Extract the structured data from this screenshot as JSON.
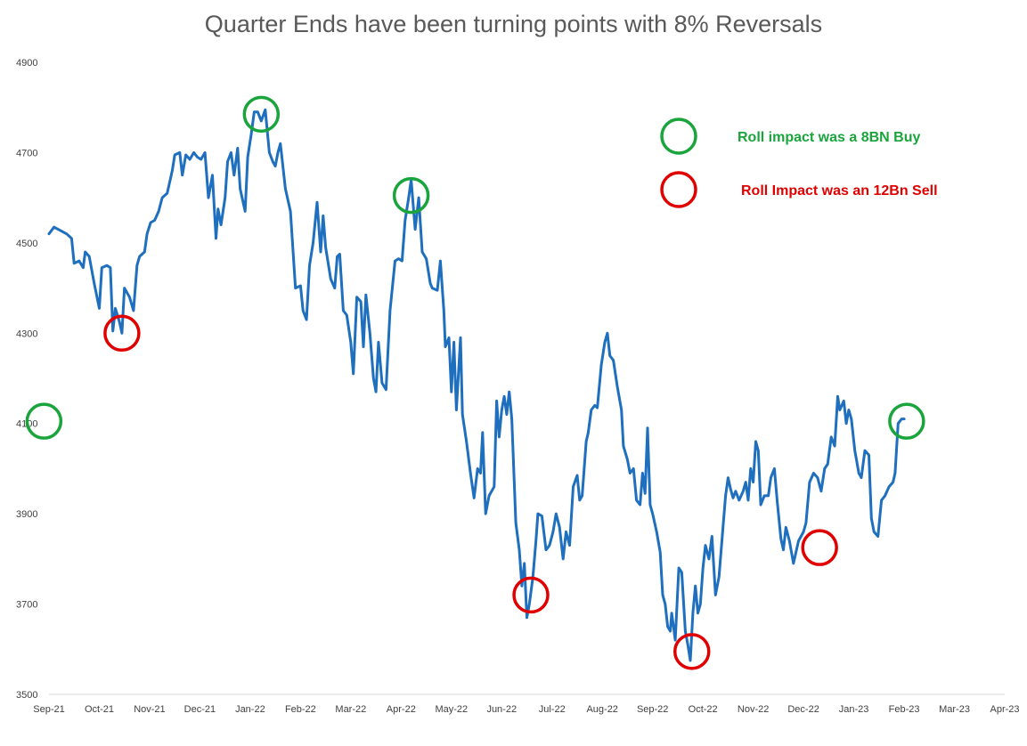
{
  "chart_data": {
    "type": "line",
    "title": "Quarter Ends have been turning points with 8% Reversals",
    "xlabel": "",
    "ylabel": "",
    "ylim": [
      3500,
      4900
    ],
    "yticks": [
      "3500",
      "3700",
      "3900",
      "4100",
      "4300",
      "4500",
      "4700",
      "4900"
    ],
    "xticks": [
      "Sep-21",
      "Oct-21",
      "Nov-21",
      "Dec-21",
      "Jan-22",
      "Feb-22",
      "Mar-22",
      "Apr-22",
      "May-22",
      "Jun-22",
      "Jul-22",
      "Aug-22",
      "Sep-22",
      "Oct-22",
      "Nov-22",
      "Dec-22",
      "Jan-23",
      "Feb-23",
      "Mar-23",
      "Apr-23"
    ],
    "grid": false,
    "legend_position": "top-right",
    "line_color": "#1f6fbf",
    "series": [
      {
        "points": [
          [
            0.0,
            4520
          ],
          [
            0.1,
            4535
          ],
          [
            0.35,
            4520
          ],
          [
            0.45,
            4510
          ],
          [
            0.5,
            4455
          ],
          [
            0.6,
            4460
          ],
          [
            0.68,
            4445
          ],
          [
            0.72,
            4480
          ],
          [
            0.8,
            4470
          ],
          [
            0.9,
            4410
          ],
          [
            1.0,
            4355
          ],
          [
            1.05,
            4445
          ],
          [
            1.15,
            4450
          ],
          [
            1.22,
            4445
          ],
          [
            1.27,
            4305
          ],
          [
            1.32,
            4355
          ],
          [
            1.4,
            4325
          ],
          [
            1.45,
            4300
          ],
          [
            1.5,
            4400
          ],
          [
            1.6,
            4380
          ],
          [
            1.68,
            4350
          ],
          [
            1.75,
            4450
          ],
          [
            1.8,
            4470
          ],
          [
            1.9,
            4480
          ],
          [
            1.95,
            4520
          ],
          [
            2.02,
            4545
          ],
          [
            2.1,
            4550
          ],
          [
            2.18,
            4570
          ],
          [
            2.25,
            4600
          ],
          [
            2.35,
            4610
          ],
          [
            2.45,
            4660
          ],
          [
            2.5,
            4695
          ],
          [
            2.6,
            4700
          ],
          [
            2.65,
            4650
          ],
          [
            2.72,
            4695
          ],
          [
            2.8,
            4685
          ],
          [
            2.88,
            4700
          ],
          [
            2.95,
            4690
          ],
          [
            3.02,
            4685
          ],
          [
            3.1,
            4700
          ],
          [
            3.17,
            4600
          ],
          [
            3.25,
            4650
          ],
          [
            3.32,
            4510
          ],
          [
            3.36,
            4575
          ],
          [
            3.42,
            4540
          ],
          [
            3.5,
            4600
          ],
          [
            3.55,
            4680
          ],
          [
            3.62,
            4700
          ],
          [
            3.68,
            4650
          ],
          [
            3.75,
            4710
          ],
          [
            3.8,
            4620
          ],
          [
            3.9,
            4570
          ],
          [
            3.95,
            4690
          ],
          [
            4.02,
            4740
          ],
          [
            4.08,
            4790
          ],
          [
            4.15,
            4790
          ],
          [
            4.22,
            4770
          ],
          [
            4.3,
            4795
          ],
          [
            4.38,
            4700
          ],
          [
            4.45,
            4680
          ],
          [
            4.5,
            4670
          ],
          [
            4.55,
            4700
          ],
          [
            4.6,
            4720
          ],
          [
            4.7,
            4620
          ],
          [
            4.8,
            4570
          ],
          [
            4.9,
            4400
          ],
          [
            5.0,
            4405
          ],
          [
            5.05,
            4350
          ],
          [
            5.12,
            4330
          ],
          [
            5.18,
            4450
          ],
          [
            5.25,
            4500
          ],
          [
            5.33,
            4590
          ],
          [
            5.4,
            4480
          ],
          [
            5.45,
            4560
          ],
          [
            5.5,
            4490
          ],
          [
            5.6,
            4420
          ],
          [
            5.68,
            4400
          ],
          [
            5.73,
            4470
          ],
          [
            5.78,
            4475
          ],
          [
            5.85,
            4350
          ],
          [
            5.92,
            4340
          ],
          [
            6.0,
            4280
          ],
          [
            6.05,
            4210
          ],
          [
            6.12,
            4380
          ],
          [
            6.2,
            4370
          ],
          [
            6.25,
            4270
          ],
          [
            6.3,
            4385
          ],
          [
            6.38,
            4300
          ],
          [
            6.45,
            4200
          ],
          [
            6.5,
            4170
          ],
          [
            6.55,
            4280
          ],
          [
            6.62,
            4190
          ],
          [
            6.7,
            4175
          ],
          [
            6.78,
            4350
          ],
          [
            6.88,
            4460
          ],
          [
            6.95,
            4465
          ],
          [
            7.02,
            4460
          ],
          [
            7.08,
            4550
          ],
          [
            7.15,
            4600
          ],
          [
            7.2,
            4640
          ],
          [
            7.28,
            4530
          ],
          [
            7.35,
            4600
          ],
          [
            7.42,
            4480
          ],
          [
            7.5,
            4465
          ],
          [
            7.58,
            4410
          ],
          [
            7.62,
            4400
          ],
          [
            7.72,
            4395
          ],
          [
            7.78,
            4460
          ],
          [
            7.85,
            4350
          ],
          [
            7.88,
            4270
          ],
          [
            7.95,
            4290
          ],
          [
            8.0,
            4170
          ],
          [
            8.05,
            4280
          ],
          [
            8.1,
            4130
          ],
          [
            8.18,
            4290
          ],
          [
            8.22,
            4120
          ],
          [
            8.3,
            4060
          ],
          [
            8.38,
            3990
          ],
          [
            8.45,
            3935
          ],
          [
            8.52,
            4000
          ],
          [
            8.58,
            3990
          ],
          [
            8.62,
            4080
          ],
          [
            8.68,
            3900
          ],
          [
            8.75,
            3940
          ],
          [
            8.85,
            3960
          ],
          [
            8.9,
            4150
          ],
          [
            8.95,
            4070
          ],
          [
            9.0,
            4130
          ],
          [
            9.05,
            4160
          ],
          [
            9.1,
            4120
          ],
          [
            9.15,
            4170
          ],
          [
            9.2,
            4110
          ],
          [
            9.28,
            3880
          ],
          [
            9.35,
            3820
          ],
          [
            9.4,
            3740
          ],
          [
            9.45,
            3790
          ],
          [
            9.5,
            3670
          ],
          [
            9.55,
            3700
          ],
          [
            9.62,
            3760
          ],
          [
            9.68,
            3840
          ],
          [
            9.72,
            3900
          ],
          [
            9.8,
            3895
          ],
          [
            9.88,
            3820
          ],
          [
            9.95,
            3830
          ],
          [
            10.02,
            3860
          ],
          [
            10.08,
            3900
          ],
          [
            10.15,
            3870
          ],
          [
            10.22,
            3800
          ],
          [
            10.28,
            3860
          ],
          [
            10.35,
            3830
          ],
          [
            10.42,
            3960
          ],
          [
            10.5,
            3985
          ],
          [
            10.55,
            3930
          ],
          [
            10.6,
            3940
          ],
          [
            10.68,
            4060
          ],
          [
            10.72,
            4080
          ],
          [
            10.78,
            4130
          ],
          [
            10.85,
            4140
          ],
          [
            10.9,
            4135
          ],
          [
            10.98,
            4230
          ],
          [
            11.05,
            4280
          ],
          [
            11.1,
            4300
          ],
          [
            11.15,
            4250
          ],
          [
            11.22,
            4240
          ],
          [
            11.3,
            4180
          ],
          [
            11.38,
            4130
          ],
          [
            11.42,
            4050
          ],
          [
            11.5,
            4020
          ],
          [
            11.55,
            3990
          ],
          [
            11.62,
            4000
          ],
          [
            11.68,
            3930
          ],
          [
            11.75,
            3920
          ],
          [
            11.8,
            3990
          ],
          [
            11.85,
            3945
          ],
          [
            11.9,
            4090
          ],
          [
            11.95,
            3920
          ],
          [
            12.0,
            3900
          ],
          [
            12.08,
            3860
          ],
          [
            12.15,
            3815
          ],
          [
            12.2,
            3720
          ],
          [
            12.25,
            3700
          ],
          [
            12.3,
            3650
          ],
          [
            12.35,
            3640
          ],
          [
            12.38,
            3680
          ],
          [
            12.45,
            3620
          ],
          [
            12.52,
            3780
          ],
          [
            12.58,
            3770
          ],
          [
            12.65,
            3640
          ],
          [
            12.7,
            3610
          ],
          [
            12.75,
            3575
          ],
          [
            12.8,
            3680
          ],
          [
            12.85,
            3740
          ],
          [
            12.9,
            3680
          ],
          [
            12.95,
            3700
          ],
          [
            13.0,
            3780
          ],
          [
            13.05,
            3830
          ],
          [
            13.12,
            3800
          ],
          [
            13.18,
            3850
          ],
          [
            13.25,
            3720
          ],
          [
            13.32,
            3760
          ],
          [
            13.4,
            3870
          ],
          [
            13.45,
            3940
          ],
          [
            13.5,
            3980
          ],
          [
            13.55,
            3955
          ],
          [
            13.6,
            3935
          ],
          [
            13.65,
            3950
          ],
          [
            13.72,
            3930
          ],
          [
            13.8,
            3950
          ],
          [
            13.85,
            3970
          ],
          [
            13.9,
            3930
          ],
          [
            13.95,
            4000
          ],
          [
            14.0,
            3970
          ],
          [
            14.05,
            4060
          ],
          [
            14.1,
            4040
          ],
          [
            14.15,
            3920
          ],
          [
            14.22,
            3940
          ],
          [
            14.3,
            3940
          ],
          [
            14.35,
            3980
          ],
          [
            14.42,
            4000
          ],
          [
            14.48,
            3925
          ],
          [
            14.55,
            3845
          ],
          [
            14.6,
            3820
          ],
          [
            14.65,
            3870
          ],
          [
            14.72,
            3840
          ],
          [
            14.8,
            3790
          ],
          [
            14.9,
            3840
          ],
          [
            15.0,
            3860
          ],
          [
            15.05,
            3880
          ],
          [
            15.12,
            3970
          ],
          [
            15.2,
            3990
          ],
          [
            15.28,
            3980
          ],
          [
            15.35,
            3950
          ],
          [
            15.42,
            4000
          ],
          [
            15.48,
            4010
          ],
          [
            15.55,
            4070
          ],
          [
            15.62,
            4050
          ],
          [
            15.68,
            4160
          ],
          [
            15.72,
            4130
          ],
          [
            15.8,
            4150
          ],
          [
            15.85,
            4100
          ],
          [
            15.9,
            4130
          ],
          [
            15.95,
            4110
          ],
          [
            16.02,
            4040
          ],
          [
            16.1,
            3990
          ],
          [
            16.15,
            3980
          ],
          [
            16.22,
            4040
          ],
          [
            16.3,
            4030
          ],
          [
            16.35,
            3890
          ],
          [
            16.4,
            3860
          ],
          [
            16.48,
            3850
          ],
          [
            16.55,
            3930
          ],
          [
            16.62,
            3940
          ],
          [
            16.7,
            3960
          ],
          [
            16.78,
            3970
          ],
          [
            16.82,
            3990
          ],
          [
            16.88,
            4100
          ],
          [
            16.95,
            4110
          ],
          [
            17.0,
            4110
          ]
        ]
      }
    ],
    "markers": [
      {
        "x": 1.45,
        "y": 4300,
        "type": "sell"
      },
      {
        "x": 4.22,
        "y": 4785,
        "type": "buy"
      },
      {
        "x": 7.2,
        "y": 4605,
        "type": "buy"
      },
      {
        "x": 9.58,
        "y": 3720,
        "type": "sell"
      },
      {
        "x": 12.78,
        "y": 3595,
        "type": "sell"
      },
      {
        "x": 15.32,
        "y": 3825,
        "type": "sell"
      },
      {
        "x": 17.05,
        "y": 4105,
        "type": "buy"
      },
      {
        "x": -0.1,
        "y": 4105,
        "type": "buy"
      }
    ],
    "legend": [
      {
        "label": "Roll impact was a 8BN Buy",
        "color": "#1aa43c",
        "type": "buy"
      },
      {
        "label": "Roll Impact was an 12Bn Sell",
        "color": "#e00000",
        "type": "sell"
      }
    ]
  }
}
